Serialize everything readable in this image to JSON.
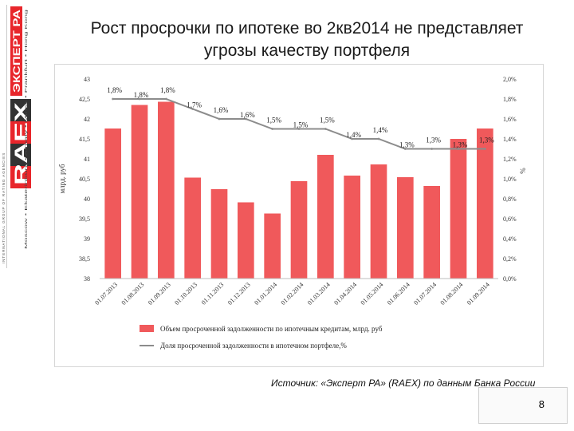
{
  "title_line1": "Рост просрочки по ипотеке во 2кв2014 не представляет",
  "title_line2": "угрозы качеству портфеля",
  "logo": {
    "brand_text": "RAEX",
    "brand_ru": "ЭКСПЕРТ РА",
    "group_text": "INTERNATIONAL GROUP OF RATING AGENCIES",
    "cities": "Moscow • Ekaterinburg • Almaty • Minsk • Frankfurt • Hong Kong",
    "colors": {
      "red": "#e8262b",
      "dark": "#333333"
    }
  },
  "source": "Источник: «Эксперт РА» (RAEX) по данным Банка России",
  "page_number": "8",
  "chart_data": {
    "type": "bar+line",
    "categories": [
      "01.07.2013",
      "01.08.2013",
      "01.09.2013",
      "01.10.2013",
      "01.11.2013",
      "01.12.2013",
      "01.01.2014",
      "01.02.2014",
      "01.03.2014",
      "01.04.2014",
      "01.05.2014",
      "01.06.2014",
      "01.07.2014",
      "01.08.2014",
      "01.09.2014"
    ],
    "series": [
      {
        "name": "Объем просроченной задолженности по ипотечным кредитам, млрд. руб",
        "type": "bar",
        "axis": "left",
        "color": "#f0595b",
        "values": [
          41.76,
          42.35,
          42.43,
          40.53,
          40.24,
          39.91,
          39.63,
          40.44,
          41.1,
          40.58,
          40.86,
          40.54,
          40.32,
          41.5,
          41.76
        ]
      },
      {
        "name": "Доля просроченной задолженности в ипотечном портфеле,%",
        "type": "line",
        "axis": "right",
        "color": "#8c8c8c",
        "values": [
          1.8,
          1.8,
          1.8,
          1.7,
          1.6,
          1.6,
          1.5,
          1.5,
          1.5,
          1.4,
          1.4,
          1.3,
          1.3,
          1.3,
          1.3
        ],
        "labels": [
          "1,8%",
          "1,8%",
          "1,8%",
          "1,7%",
          "1,6%",
          "1,6%",
          "1,5%",
          "1,5%",
          "1,5%",
          "1,4%",
          "1,4%",
          "1,3%",
          "1,3%",
          "1,3%",
          "1,3%"
        ]
      }
    ],
    "left_axis": {
      "label": "млрд. руб",
      "ylim": [
        38,
        43
      ],
      "ticks": [
        38,
        38.5,
        39,
        39.5,
        40,
        40.5,
        41,
        41.5,
        42,
        42.5,
        43
      ],
      "tick_labels": [
        "38",
        "38,5",
        "39",
        "39,5",
        "40",
        "40,5",
        "41",
        "41,5",
        "42",
        "42,5",
        "43"
      ]
    },
    "right_axis": {
      "label": "%",
      "ylim": [
        0,
        2
      ],
      "ticks": [
        0,
        0.2,
        0.4,
        0.6,
        0.8,
        1.0,
        1.2,
        1.4,
        1.6,
        1.8,
        2.0
      ],
      "tick_labels": [
        "0,0%",
        "0,2%",
        "0,4%",
        "0,6%",
        "0,8%",
        "1,0%",
        "1,2%",
        "1,4%",
        "1,6%",
        "1,8%",
        "2,0%"
      ]
    },
    "legend_position": "bottom",
    "grid": false
  }
}
